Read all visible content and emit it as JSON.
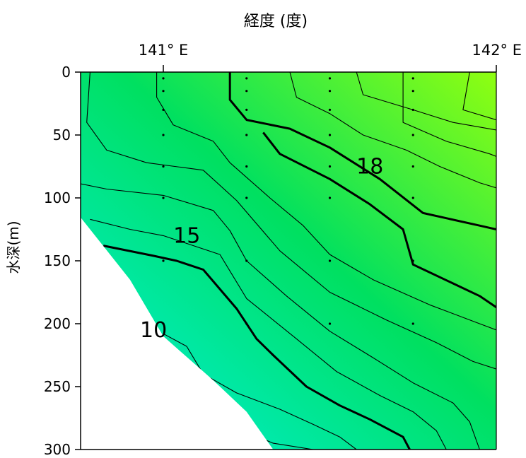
{
  "chart_data": {
    "type": "contour",
    "xlabel": "経度 (度)",
    "ylabel": "水深(m)",
    "x_ticks": [
      {
        "value": 141.0,
        "label": "141° E"
      },
      {
        "value": 142.0,
        "label": "142° E"
      }
    ],
    "xlim": [
      140.5,
      142.0
    ],
    "ylim": [
      0,
      300
    ],
    "y_ticks": [
      0,
      50,
      100,
      150,
      200,
      250,
      300
    ],
    "y_inverted": true,
    "colors": {
      "deep": "#00f0e0",
      "mid": "#00e060",
      "shallow": "#90ff10",
      "line": "#000000",
      "bottom_mask": "#ffffff"
    },
    "contour_labels": [
      {
        "text": "18",
        "x": 141.58,
        "y": 75
      },
      {
        "text": "15",
        "x": 141.03,
        "y": 130
      },
      {
        "text": "10",
        "x": 140.93,
        "y": 205
      }
    ],
    "contours": [
      {
        "level": 8,
        "bold": false,
        "points": [
          [
            141.03,
            256
          ],
          [
            141.15,
            275
          ],
          [
            141.33,
            295
          ],
          [
            141.45,
            300
          ]
        ]
      },
      {
        "level": 9,
        "bold": false,
        "points": [
          [
            141.0,
            208
          ],
          [
            141.07,
            218
          ],
          [
            141.12,
            240
          ],
          [
            141.22,
            255
          ],
          [
            141.35,
            268
          ],
          [
            141.45,
            280
          ],
          [
            141.53,
            290
          ],
          [
            141.58,
            300
          ]
        ]
      },
      {
        "level": 10,
        "bold": true,
        "points": [
          [
            140.82,
            138
          ],
          [
            140.97,
            146
          ],
          [
            141.04,
            150
          ],
          [
            141.12,
            157
          ],
          [
            141.22,
            188
          ],
          [
            141.28,
            212
          ],
          [
            141.33,
            225
          ],
          [
            141.43,
            250
          ],
          [
            141.53,
            265
          ],
          [
            141.62,
            276
          ],
          [
            141.72,
            290
          ],
          [
            141.74,
            300
          ]
        ]
      },
      {
        "level": 11,
        "bold": false,
        "points": [
          [
            140.78,
            117
          ],
          [
            140.9,
            125
          ],
          [
            141.0,
            130
          ],
          [
            141.17,
            145
          ],
          [
            141.25,
            180
          ],
          [
            141.4,
            212
          ],
          [
            141.52,
            238
          ],
          [
            141.65,
            257
          ],
          [
            141.75,
            270
          ],
          [
            141.82,
            285
          ],
          [
            141.85,
            300
          ]
        ]
      },
      {
        "level": 12,
        "bold": false,
        "points": [
          [
            140.7,
            86
          ],
          [
            140.83,
            93
          ],
          [
            141.0,
            98
          ],
          [
            141.15,
            110
          ],
          [
            141.2,
            126
          ],
          [
            141.25,
            150
          ],
          [
            141.37,
            178
          ],
          [
            141.5,
            206
          ],
          [
            141.63,
            227
          ],
          [
            141.75,
            247
          ],
          [
            141.87,
            263
          ],
          [
            141.92,
            278
          ],
          [
            141.95,
            300
          ]
        ]
      },
      {
        "level": 13,
        "bold": false,
        "points": [
          [
            140.78,
            0
          ],
          [
            140.77,
            40
          ],
          [
            140.83,
            62
          ],
          [
            140.95,
            72
          ],
          [
            141.12,
            78
          ],
          [
            141.22,
            102
          ],
          [
            141.35,
            142
          ],
          [
            141.5,
            175
          ],
          [
            141.67,
            197
          ],
          [
            141.82,
            215
          ],
          [
            141.93,
            230
          ],
          [
            142.0,
            236
          ]
        ]
      },
      {
        "level": 14,
        "bold": false,
        "points": [
          [
            140.98,
            0
          ],
          [
            140.98,
            20
          ],
          [
            141.03,
            42
          ],
          [
            141.15,
            55
          ],
          [
            141.2,
            72
          ],
          [
            141.32,
            100
          ],
          [
            141.42,
            122
          ],
          [
            141.5,
            145
          ],
          [
            141.63,
            165
          ],
          [
            141.8,
            185
          ],
          [
            141.95,
            200
          ],
          [
            142.0,
            205
          ]
        ]
      },
      {
        "level": 15,
        "bold": true,
        "points": [
          [
            141.2,
            0
          ],
          [
            141.2,
            22
          ],
          [
            141.25,
            38
          ],
          [
            141.38,
            45
          ],
          [
            141.5,
            60
          ],
          [
            141.65,
            85
          ],
          [
            141.78,
            112
          ],
          [
            141.95,
            122
          ],
          [
            142.0,
            125
          ]
        ]
      },
      {
        "level": 15.5,
        "bold": true,
        "points": [
          [
            141.3,
            48
          ],
          [
            141.35,
            65
          ],
          [
            141.5,
            85
          ],
          [
            141.62,
            105
          ],
          [
            141.72,
            125
          ],
          [
            141.75,
            153
          ],
          [
            141.87,
            168
          ],
          [
            141.95,
            178
          ],
          [
            142.05,
            196
          ]
        ]
      },
      {
        "level": 16,
        "bold": false,
        "points": [
          [
            141.38,
            0
          ],
          [
            141.4,
            20
          ],
          [
            141.5,
            33
          ],
          [
            141.6,
            50
          ],
          [
            141.73,
            62
          ],
          [
            141.83,
            75
          ],
          [
            141.95,
            88
          ],
          [
            142.0,
            92
          ]
        ]
      },
      {
        "level": 17,
        "bold": false,
        "points": [
          [
            141.58,
            0
          ],
          [
            141.6,
            18
          ],
          [
            141.75,
            30
          ],
          [
            141.87,
            40
          ],
          [
            142.0,
            46
          ]
        ]
      },
      {
        "level": 18,
        "bold": false,
        "points": [
          [
            141.72,
            0
          ],
          [
            141.72,
            40
          ],
          [
            141.85,
            55
          ],
          [
            141.98,
            65
          ],
          [
            142.0,
            67
          ]
        ]
      },
      {
        "level": 19,
        "bold": false,
        "points": [
          [
            141.92,
            0
          ],
          [
            141.9,
            30
          ],
          [
            142.0,
            38
          ]
        ]
      }
    ],
    "stations": [
      {
        "x": 140.5,
        "depths": [
          5,
          15,
          25
        ]
      },
      {
        "x": 141.0,
        "depths": [
          5,
          15,
          30,
          50,
          75,
          100,
          150,
          200
        ]
      },
      {
        "x": 141.25,
        "depths": [
          5,
          15,
          30,
          50,
          75,
          100,
          150,
          200
        ]
      },
      {
        "x": 141.5,
        "depths": [
          5,
          15,
          30,
          50,
          75,
          100,
          150,
          200
        ]
      },
      {
        "x": 141.75,
        "depths": [
          5,
          15,
          30,
          50,
          75,
          100,
          150,
          200
        ]
      }
    ],
    "bottom_profile": [
      [
        140.5,
        0
      ],
      [
        140.5,
        20
      ],
      [
        140.75,
        115
      ],
      [
        140.9,
        165
      ],
      [
        141.0,
        210
      ],
      [
        141.15,
        245
      ],
      [
        141.25,
        270
      ],
      [
        141.33,
        300
      ]
    ],
    "grid": false
  }
}
